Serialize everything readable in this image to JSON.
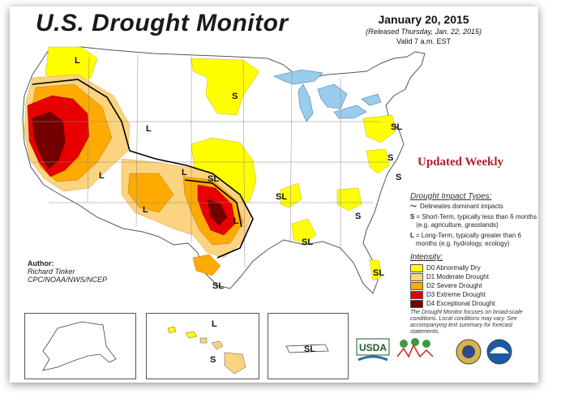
{
  "header": {
    "title": "U.S. Drought Monitor",
    "date": "January 20, 2015",
    "released": "(Released Thursday, Jan. 22, 2015)",
    "valid": "Valid 7 a.m. EST"
  },
  "banner": "Updated Weekly",
  "impact_types": {
    "heading": "Drought Impact Types:",
    "dominant": "Delineates dominant impacts",
    "short_key": "S",
    "short_text": "= Short-Term, typically less than 6 months (e.g. agriculture, grasslands)",
    "long_key": "L",
    "long_text": "= Long-Term, typically greater than 6 months (e.g. hydrology, ecology)"
  },
  "intensity": {
    "heading": "Intensity:",
    "levels": [
      {
        "label": "D0 Abnormally Dry",
        "color": "#ffff00"
      },
      {
        "label": "D1 Moderate Drought",
        "color": "#fcd37f"
      },
      {
        "label": "D2 Severe Drought",
        "color": "#ffaa00"
      },
      {
        "label": "D3 Extreme Drought",
        "color": "#e60000"
      },
      {
        "label": "D4 Exceptional Drought",
        "color": "#730000"
      }
    ]
  },
  "note": "The Drought Monitor focuses on broad-scale conditions. Local conditions may vary. See accompanying text summary for forecast statements.",
  "author": {
    "heading": "Author:",
    "name": "Richard Tinker",
    "org": "CPC/NOAA/NWS/NCEP"
  },
  "map_labels": {
    "L": "L",
    "S": "S",
    "SL": "SL"
  },
  "logos": {
    "usda": "USDA"
  },
  "colors": {
    "water": "#99ccee",
    "land": "#ffffff",
    "border": "#666666"
  }
}
